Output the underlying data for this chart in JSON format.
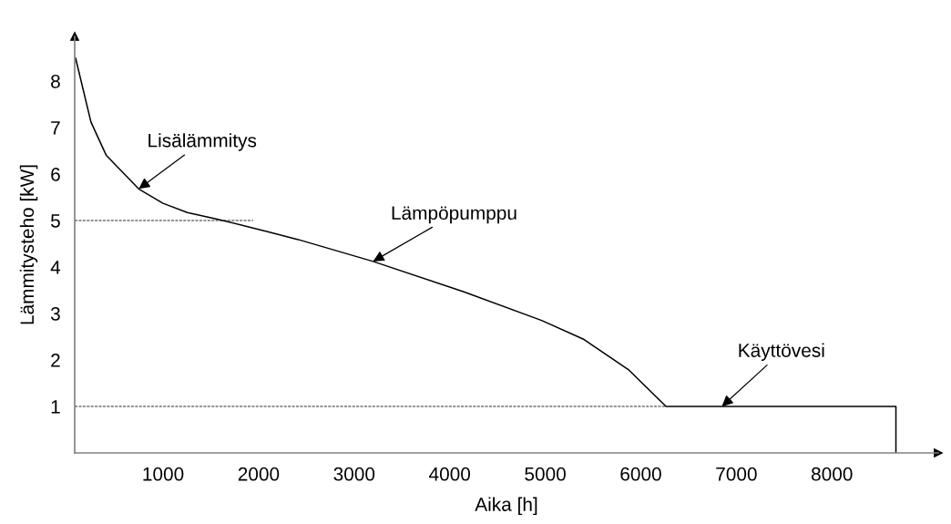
{
  "chart_data": {
    "type": "line",
    "xlabel": "Aika [h]",
    "ylabel": "Lämmitysteho [kW]",
    "series": [
      {
        "color": "#000000",
        "x": [
          85,
          245,
          406,
          745,
          1000,
          1255,
          1566,
          1943,
          2415,
          3198,
          4142,
          4962,
          5406,
          5877,
          6264,
          8670,
          8670
        ],
        "values": [
          8.49,
          7.12,
          6.4,
          5.68,
          5.37,
          5.17,
          5.03,
          4.84,
          4.59,
          4.12,
          3.47,
          2.85,
          2.44,
          1.78,
          1.0,
          1.0,
          0
        ]
      }
    ],
    "xlim": [
      75,
      9113
    ],
    "ylim": [
      0,
      8.96
    ],
    "xticks": [
      1000,
      2000,
      3000,
      4000,
      5000,
      6000,
      7000,
      8000
    ],
    "yticks": [
      1,
      2,
      3,
      4,
      5,
      6,
      7,
      8
    ],
    "ref_lines": [
      {
        "axis": "y",
        "value": 5,
        "line_style": "dashed",
        "color": "#000000"
      },
      {
        "axis": "y",
        "value": 1,
        "line_style": "dashed",
        "color": "#000000"
      }
    ],
    "annotations": [
      {
        "text": "Lisälämmitys",
        "x": 745,
        "y": 5.68
      },
      {
        "text": "Lämpöpumppu",
        "x": 3198,
        "y": 4.12
      },
      {
        "text": "Käyttövesi",
        "x": 6849,
        "y": 1.0
      }
    ],
    "grid": false,
    "marker": "none",
    "line_style": "solid"
  }
}
